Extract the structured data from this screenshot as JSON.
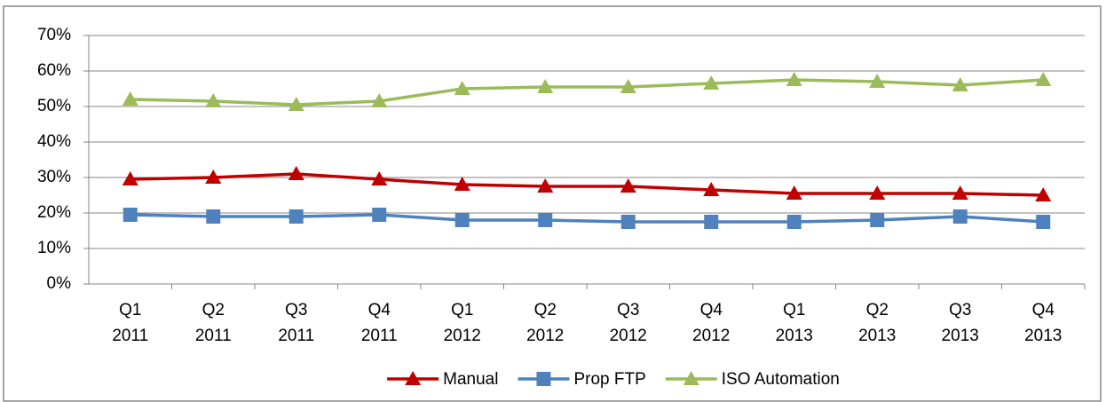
{
  "chart_data": {
    "type": "line",
    "categories": [
      "Q1 2011",
      "Q2 2011",
      "Q3 2011",
      "Q4 2011",
      "Q1 2012",
      "Q2 2012",
      "Q3 2012",
      "Q4 2012",
      "Q1 2013",
      "Q2 2013",
      "Q3 2013",
      "Q4 2013"
    ],
    "series": [
      {
        "name": "Manual",
        "color": "#c00000",
        "marker": "triangle",
        "values": [
          29.5,
          30,
          31,
          29.5,
          28,
          27.5,
          27.5,
          26.5,
          25.5,
          25.5,
          25.5,
          25
        ]
      },
      {
        "name": "Prop FTP",
        "color": "#4f81bd",
        "marker": "square",
        "values": [
          19.5,
          19,
          19,
          19.5,
          18,
          18,
          17.5,
          17.5,
          17.5,
          18,
          19,
          17.5
        ]
      },
      {
        "name": "ISO Automation",
        "color": "#9bbb59",
        "marker": "triangle",
        "values": [
          52,
          51.5,
          50.5,
          51.5,
          55,
          55.5,
          55.5,
          56.5,
          57.5,
          57,
          56,
          57.5
        ]
      }
    ],
    "ylim": [
      0,
      70
    ],
    "yticks": [
      {
        "value": 0,
        "label": "0%"
      },
      {
        "value": 10,
        "label": "10%"
      },
      {
        "value": 20,
        "label": "20%"
      },
      {
        "value": 30,
        "label": "30%"
      },
      {
        "value": 40,
        "label": "40%"
      },
      {
        "value": 50,
        "label": "50%"
      },
      {
        "value": 60,
        "label": "60%"
      },
      {
        "value": 70,
        "label": "70%"
      }
    ],
    "grid": true,
    "legend": "bottom"
  }
}
